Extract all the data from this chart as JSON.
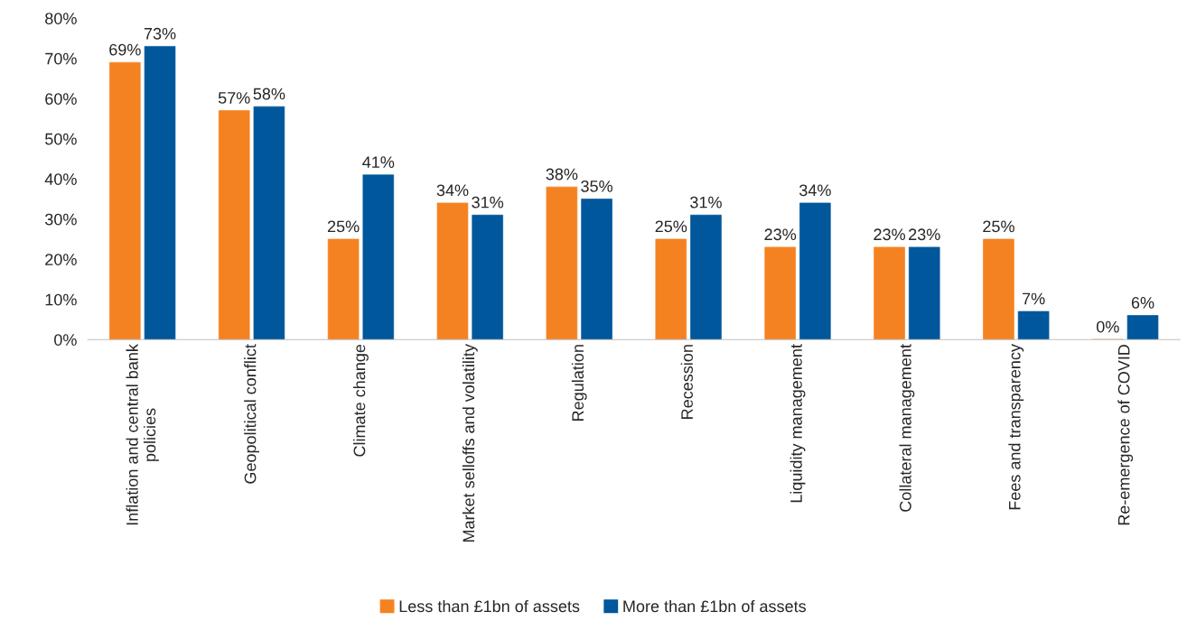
{
  "chart_data": {
    "type": "bar",
    "categories": [
      "Inflation and central bank\npolicies",
      "Geopolitical conflict",
      "Climate change",
      "Market selloffs and volatility",
      "Regulation",
      "Recession",
      "Liquidity management",
      "Collateral management",
      "Fees and transparency",
      "Re-emergence of COVID"
    ],
    "series": [
      {
        "name": "Less than £1bn of assets",
        "color": "#f58220",
        "values": [
          69,
          57,
          25,
          34,
          38,
          25,
          23,
          23,
          25,
          0
        ],
        "value_labels": [
          "69%",
          "57%",
          "25%",
          "34%",
          "38%",
          "25%",
          "23%",
          "23%",
          "25%",
          "0%"
        ]
      },
      {
        "name": "More than £1bn of assets",
        "color": "#00579b",
        "values": [
          73,
          58,
          41,
          31,
          35,
          31,
          34,
          23,
          7,
          6
        ],
        "value_labels": [
          "73%",
          "58%",
          "41%",
          "31%",
          "35%",
          "31%",
          "34%",
          "23%",
          "7%",
          "6%"
        ]
      }
    ],
    "ylim": [
      0,
      80
    ],
    "yticks": [
      {
        "value": 0,
        "label": "0%"
      },
      {
        "value": 10,
        "label": "10%"
      },
      {
        "value": 20,
        "label": "20%"
      },
      {
        "value": 30,
        "label": "30%"
      },
      {
        "value": 40,
        "label": "40%"
      },
      {
        "value": 50,
        "label": "50%"
      },
      {
        "value": 60,
        "label": "60%"
      },
      {
        "value": 70,
        "label": "70%"
      },
      {
        "value": 80,
        "label": "80%"
      }
    ],
    "grid": false,
    "legend": "bottom"
  }
}
